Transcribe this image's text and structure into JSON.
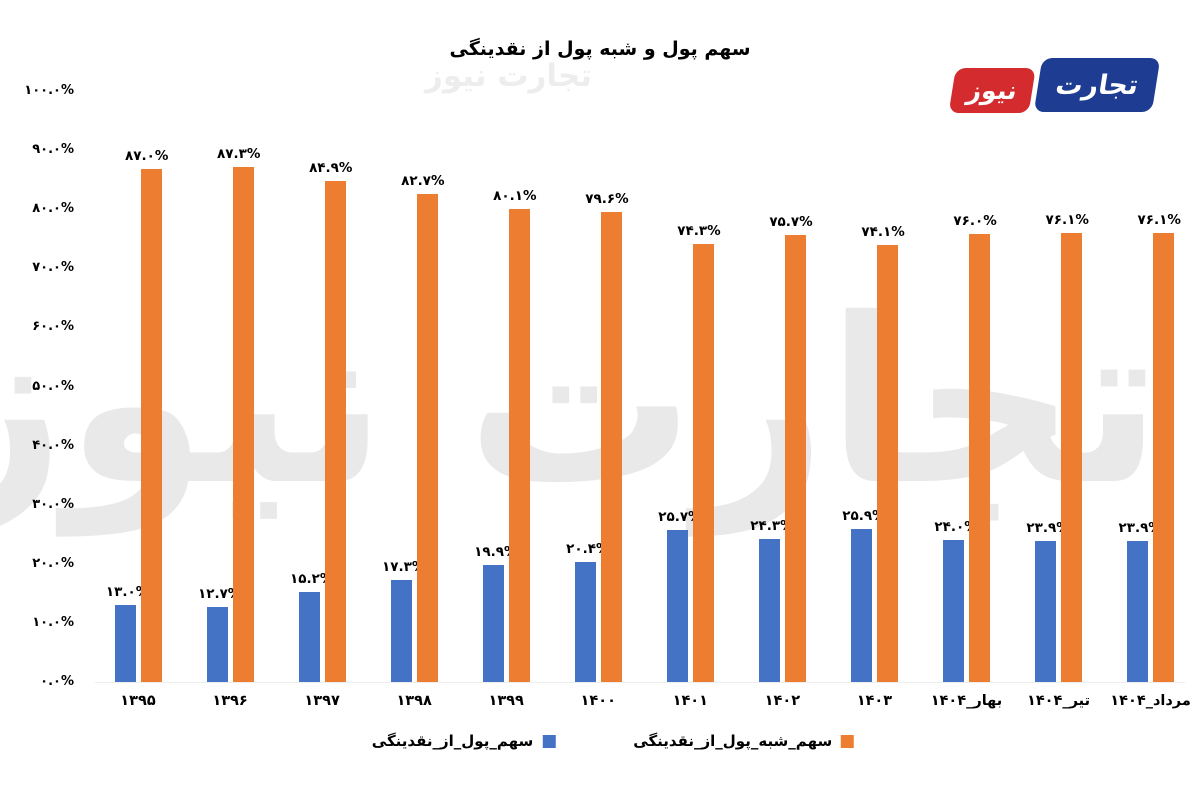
{
  "title": "سهم پول و شبه پول از نقدینگی",
  "logo": {
    "word_right": "تجارت",
    "word_left": "نیوز"
  },
  "watermark": {
    "text": "تجارت نیوز"
  },
  "colors": {
    "series_money": "#4472C4",
    "series_quasi": "#ED7D31",
    "logo_blue": "#1e3d92",
    "logo_red": "#d32b2e",
    "watermark": "#e9e9e9",
    "text": "#000000",
    "background": "#ffffff"
  },
  "y_axis": {
    "ticks": [
      "۱۰۰.۰%",
      "۹۰.۰%",
      "۸۰.۰%",
      "۷۰.۰%",
      "۶۰.۰%",
      "۵۰.۰%",
      "۴۰.۰%",
      "۳۰.۰%",
      "۲۰.۰%",
      "۱۰.۰%",
      "۰.۰%"
    ],
    "tick_values": [
      100,
      90,
      80,
      70,
      60,
      50,
      40,
      30,
      20,
      10,
      0
    ]
  },
  "chart_data": {
    "type": "bar",
    "title": "سهم پول و شبه پول از نقدینگی",
    "categories": [
      "۱۳۹۵",
      "۱۳۹۶",
      "۱۳۹۷",
      "۱۳۹۸",
      "۱۳۹۹",
      "۱۴۰۰",
      "۱۴۰۱",
      "۱۴۰۲",
      "۱۴۰۳",
      "بهار_۱۴۰۴",
      "تیر_۱۴۰۴",
      "مرداد_۱۴۰۴"
    ],
    "series": [
      {
        "name": "سهم_پول_از_نقدینگی",
        "color": "#4472C4",
        "values": [
          13.0,
          12.7,
          15.2,
          17.3,
          19.9,
          20.4,
          25.7,
          24.3,
          25.9,
          24.0,
          23.9,
          23.9
        ],
        "labels": [
          "۱۳.۰%",
          "۱۲.۷%",
          "۱۵.۲%",
          "۱۷.۳%",
          "۱۹.۹%",
          "۲۰.۴%",
          "۲۵.۷%",
          "۲۴.۳%",
          "۲۵.۹%",
          "۲۴.۰%",
          "۲۳.۹%",
          "۲۳.۹%"
        ]
      },
      {
        "name": "سهم_شبه_پول_از_نقدینگی",
        "color": "#ED7D31",
        "values": [
          87.0,
          87.3,
          84.9,
          82.7,
          80.1,
          79.6,
          74.3,
          75.7,
          74.1,
          76.0,
          76.1,
          76.1
        ],
        "labels": [
          "۸۷.۰%",
          "۸۷.۳%",
          "۸۴.۹%",
          "۸۲.۷%",
          "۸۰.۱%",
          "۷۹.۶%",
          "۷۴.۳%",
          "۷۵.۷%",
          "۷۴.۱%",
          "۷۶.۰%",
          "۷۶.۱%",
          "۷۶.۱%"
        ]
      }
    ],
    "ylim": [
      0,
      100
    ],
    "grid": false,
    "legend_position": "bottom"
  },
  "legend": [
    {
      "label": "سهم_پول_از_نقدینگی",
      "color": "#4472C4"
    },
    {
      "label": "سهم_شبه_پول_از_نقدینگی",
      "color": "#ED7D31"
    }
  ]
}
